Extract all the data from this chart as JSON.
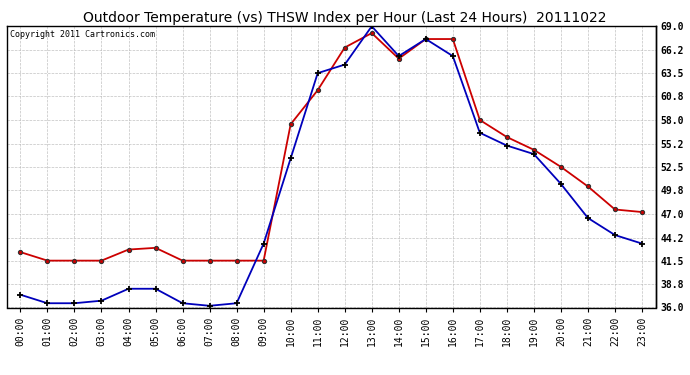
{
  "title": "Outdoor Temperature (vs) THSW Index per Hour (Last 24 Hours)  20111022",
  "copyright": "Copyright 2011 Cartronics.com",
  "hours": [
    "00:00",
    "01:00",
    "02:00",
    "03:00",
    "04:00",
    "05:00",
    "06:00",
    "07:00",
    "08:00",
    "09:00",
    "10:00",
    "11:00",
    "12:00",
    "13:00",
    "14:00",
    "15:00",
    "16:00",
    "17:00",
    "18:00",
    "19:00",
    "20:00",
    "21:00",
    "22:00",
    "23:00"
  ],
  "blue_temp": [
    37.5,
    36.5,
    36.5,
    36.8,
    38.2,
    38.2,
    36.5,
    36.2,
    36.5,
    43.5,
    53.5,
    63.5,
    64.5,
    69.0,
    65.5,
    67.5,
    65.5,
    56.5,
    55.0,
    54.0,
    50.5,
    46.5,
    44.5,
    43.5
  ],
  "red_thsw": [
    42.5,
    41.5,
    41.5,
    41.5,
    42.8,
    43.0,
    41.5,
    41.5,
    41.5,
    41.5,
    57.5,
    61.5,
    66.5,
    68.2,
    65.2,
    67.5,
    67.5,
    58.0,
    56.0,
    54.5,
    52.5,
    50.2,
    47.5,
    47.2
  ],
  "ylim_min": 36.0,
  "ylim_max": 69.0,
  "yticks": [
    36.0,
    38.8,
    41.5,
    44.2,
    47.0,
    49.8,
    52.5,
    55.2,
    58.0,
    60.8,
    63.5,
    66.2,
    69.0
  ],
  "blue_color": "#0000bb",
  "red_color": "#cc0000",
  "bg_color": "#ffffff",
  "grid_color": "#bbbbbb",
  "title_fontsize": 10,
  "tick_fontsize": 7,
  "copyright_fontsize": 6
}
